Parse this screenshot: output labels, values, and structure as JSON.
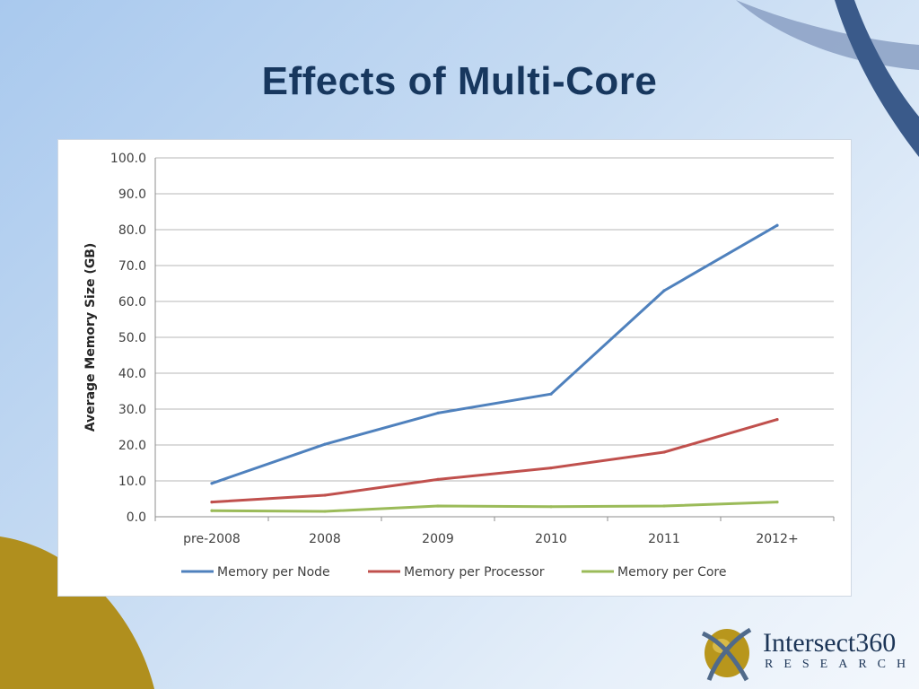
{
  "slide": {
    "title": "Effects of Multi-Core"
  },
  "logo": {
    "name": "Intersect360",
    "tagline": "RESEARCH"
  },
  "colors": {
    "title": "#17375e",
    "node": "#4f81bd",
    "processor": "#c0504d",
    "core": "#9bbb59",
    "grid": "#b7b7b7"
  },
  "chart_data": {
    "type": "line",
    "title": "",
    "xlabel": "",
    "ylabel": "Average Memory Size (GB)",
    "ylim": [
      0,
      100
    ],
    "ytick_step": 10,
    "ytick_decimals": 1,
    "grid": true,
    "legend_position": "bottom",
    "categories": [
      "pre-2008",
      "2008",
      "2009",
      "2010",
      "2011",
      "2012+"
    ],
    "series": [
      {
        "name": "Memory per Node",
        "color": "#4f81bd",
        "values": [
          9.3,
          20.2,
          28.9,
          34.2,
          63.0,
          81.2
        ]
      },
      {
        "name": "Memory per Processor",
        "color": "#c0504d",
        "values": [
          4.1,
          6.0,
          10.4,
          13.6,
          18.0,
          27.1
        ]
      },
      {
        "name": "Memory per Core",
        "color": "#9bbb59",
        "values": [
          1.7,
          1.5,
          3.0,
          2.8,
          3.0,
          4.1
        ]
      }
    ]
  }
}
